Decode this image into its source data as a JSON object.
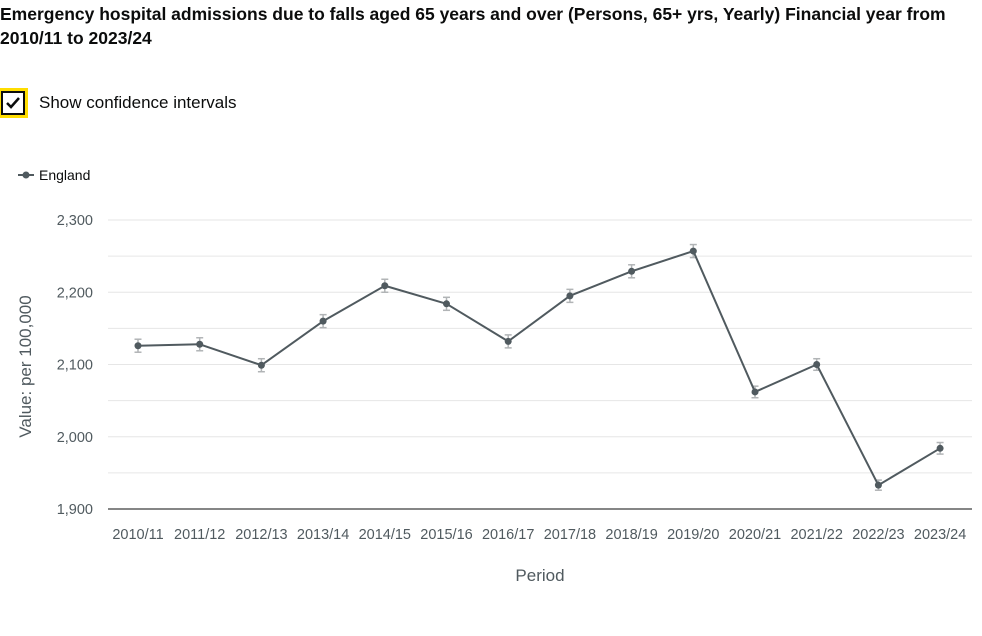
{
  "title": "Emergency hospital admissions due to falls aged 65 years and over (Persons, 65+ yrs, Yearly) Financial year from 2010/11 to 2023/24",
  "ci_toggle": {
    "label": "Show confidence intervals",
    "checked": true,
    "icon": "checkmark-icon"
  },
  "colors": {
    "series": "#505a5f",
    "error_bar": "#b1b4b6",
    "grid": "#e6e6e6",
    "axis": "#0b0c0c",
    "focus": "#ffdd00"
  },
  "chart_data": {
    "type": "line",
    "xlabel": "Period",
    "ylabel": "Value: per 100,000",
    "ylim": [
      1900,
      2300
    ],
    "yticks": [
      "1,900",
      "2,000",
      "2,100",
      "2,200",
      "2,300"
    ],
    "grid": true,
    "legend_position": "top-left",
    "categories": [
      "2010/11",
      "2011/12",
      "2012/13",
      "2013/14",
      "2014/15",
      "2015/16",
      "2016/17",
      "2017/18",
      "2018/19",
      "2019/20",
      "2020/21",
      "2021/22",
      "2022/23",
      "2023/24"
    ],
    "series": [
      {
        "name": "England",
        "values": [
          2126,
          2128,
          2099,
          2160,
          2209,
          2184,
          2132,
          2195,
          2229,
          2257,
          2062,
          2100,
          1933,
          1984
        ],
        "ci_lower": [
          2117,
          2119,
          2090,
          2151,
          2200,
          2175,
          2123,
          2186,
          2220,
          2248,
          2054,
          2092,
          1926,
          1976
        ],
        "ci_upper": [
          2135,
          2137,
          2108,
          2169,
          2218,
          2193,
          2141,
          2204,
          2238,
          2266,
          2070,
          2108,
          1940,
          1992
        ]
      }
    ]
  }
}
